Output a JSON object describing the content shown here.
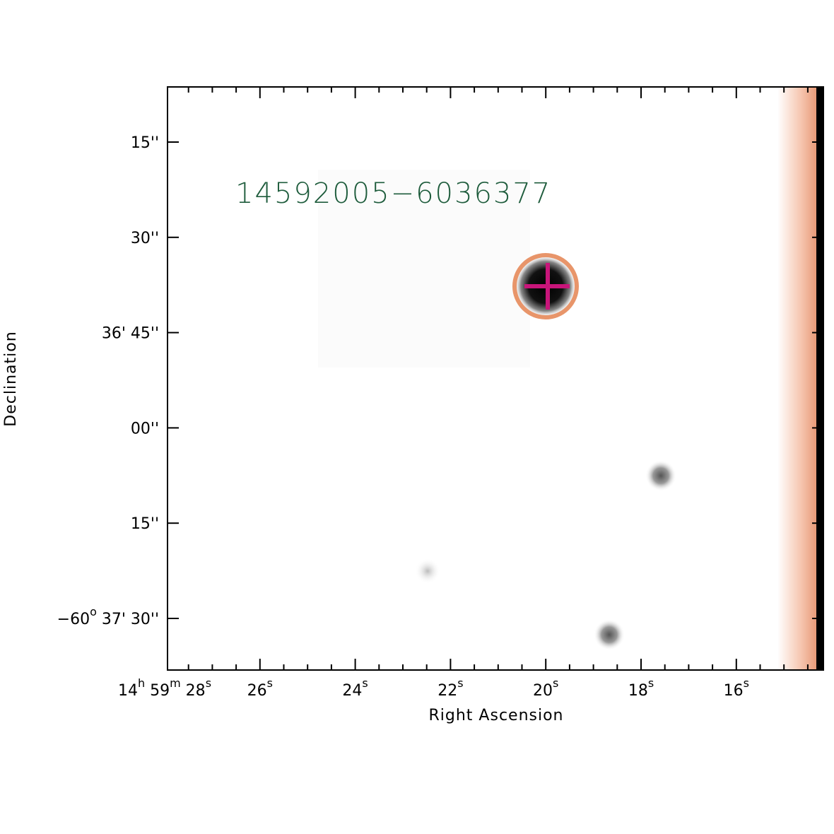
{
  "image": {
    "source_label": "14592005−6036377",
    "x_axis": {
      "title": "Right Ascension",
      "ticks": [
        [
          "14",
          "h",
          " 59",
          "m",
          " 28",
          "s"
        ],
        [
          "26",
          "s"
        ],
        [
          "24",
          "s"
        ],
        [
          "22",
          "s"
        ],
        [
          "20",
          "s"
        ],
        [
          "18",
          "s"
        ],
        [
          "16",
          "s"
        ]
      ]
    },
    "y_axis": {
      "title": "Declination",
      "ticks": [
        [
          "15''"
        ],
        [
          "30''"
        ],
        [
          "36' 45''"
        ],
        [
          "00''"
        ],
        [
          "15''"
        ],
        [
          "−60",
          "o",
          " 37' 30''"
        ]
      ]
    }
  }
}
